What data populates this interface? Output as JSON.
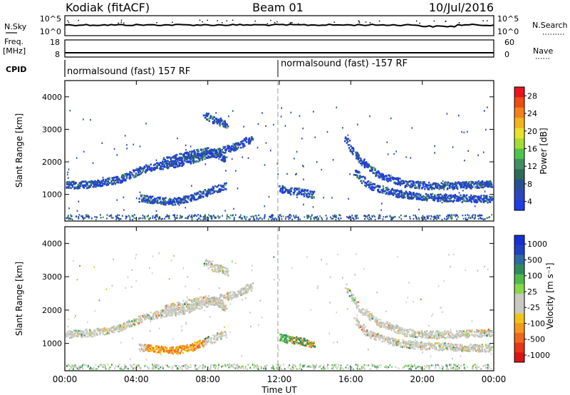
{
  "header": {
    "station": "Kodiak (fitACF)",
    "beam": "Beam 01",
    "date": "10/Jul/2016"
  },
  "panels": {
    "nsky_label": "N.Sky",
    "nsky_ticks": [
      "10^5",
      "10^0"
    ],
    "nsearch_label": "N.Search",
    "nsearch_ticks": [
      "10^5",
      "10^0"
    ],
    "freq_label_1": "Freq.",
    "freq_label_2": "[MHz]",
    "freq_ticks": [
      "18",
      "8"
    ],
    "nave_label": "Nave",
    "nave_ticks": [
      "60",
      "0"
    ],
    "cpid_label": "CPID",
    "cpid_segments": [
      "normalsound (fast) 157 RF",
      "normalsound (fast) -157 RF"
    ]
  },
  "axes": {
    "ylabel": "Slant Range [km]",
    "yticks": [
      "4000",
      "3000",
      "2000",
      "1000"
    ],
    "xlabel": "Time UT",
    "xticks": [
      "00:00",
      "04:00",
      "08:00",
      "12:00",
      "16:00",
      "20:00",
      "00:00"
    ]
  },
  "colorbars": {
    "power": {
      "label": "Power [dB]",
      "ticks": [
        "28",
        "24",
        "20",
        "16",
        "12",
        "8",
        "4"
      ],
      "colors": [
        "#e8131b",
        "#ee4a12",
        "#f4801c",
        "#f2b31b",
        "#e8e22a",
        "#a6dc33",
        "#4fc44a",
        "#3f8f62",
        "#2d6a5a",
        "#294f93",
        "#2a47bd",
        "#1e3ce8"
      ]
    },
    "velocity": {
      "label": "Velocity [m s⁻¹]",
      "ticks": [
        "1000",
        "500",
        "100",
        "25",
        "-25",
        "-100",
        "-500",
        "-1000"
      ],
      "colors": [
        "#1530d8",
        "#2040c2",
        "#2d6aa0",
        "#2f8a5a",
        "#4fb949",
        "#88d64a",
        "#c9c9c2",
        "#c9c9c2",
        "#f0c419",
        "#f4991c",
        "#f0661a",
        "#e83418",
        "#d91414"
      ]
    }
  },
  "chart_data": [
    {
      "type": "scatter",
      "panel": "power",
      "xlabel": "Time UT",
      "ylabel": "Slant Range [km]",
      "x_range_hours": [
        0,
        24
      ],
      "ylim": [
        180,
        4500
      ],
      "colorbar_range_db": [
        0,
        32
      ],
      "series": [
        {
          "x": [
            0.0,
            1.5,
            3.0,
            4.5,
            5.3,
            6.5,
            8.0,
            9.5,
            10.5
          ],
          "y": [
            1300,
            1330,
            1480,
            1820,
            1900,
            2000,
            2250,
            2500,
            2750
          ]
        },
        {
          "x": [
            5.5,
            6.3,
            7.0,
            8.0,
            8.7,
            9.0
          ],
          "y": [
            2050,
            2150,
            2250,
            2350,
            2200,
            2050
          ]
        },
        {
          "x": [
            4.2,
            5.0,
            6.0,
            7.0,
            8.0,
            9.0
          ],
          "y": [
            900,
            850,
            800,
            900,
            1100,
            1300
          ]
        },
        {
          "x": [
            7.8,
            8.3,
            8.7,
            9.1
          ],
          "y": [
            3450,
            3300,
            3250,
            3150
          ]
        },
        {
          "x": [
            12.0,
            12.4,
            13.0,
            14.0
          ],
          "y": [
            1200,
            1150,
            1100,
            1000
          ]
        },
        {
          "x": [
            15.7,
            16.5,
            17.5,
            19.0,
            20.5,
            22.0,
            24.0
          ],
          "y": [
            2700,
            2050,
            1650,
            1350,
            1280,
            1300,
            1350
          ]
        },
        {
          "x": [
            16.2,
            17.0,
            18.5,
            20.0,
            22.0,
            24.0
          ],
          "y": [
            1700,
            1300,
            1050,
            950,
            900,
            880
          ]
        }
      ]
    },
    {
      "type": "scatter",
      "panel": "velocity",
      "xlabel": "Time UT",
      "ylabel": "Slant Range [km]",
      "x_range_hours": [
        0,
        24
      ],
      "ylim": [
        180,
        4500
      ],
      "colorbar_range_ms": [
        -1000,
        1000
      ],
      "series": [
        {
          "x": [
            0.0,
            1.5,
            3.0,
            4.5,
            5.3,
            6.5,
            8.0,
            9.5,
            10.5
          ],
          "y": [
            1300,
            1330,
            1480,
            1820,
            1900,
            2000,
            2250,
            2500,
            2750
          ]
        },
        {
          "x": [
            5.5,
            6.3,
            7.0,
            8.0,
            8.7,
            9.0
          ],
          "y": [
            2050,
            2150,
            2250,
            2350,
            2200,
            2050
          ]
        },
        {
          "x": [
            4.2,
            5.0,
            6.0,
            7.0,
            8.0,
            9.0
          ],
          "y": [
            900,
            850,
            800,
            900,
            1100,
            1300
          ]
        },
        {
          "x": [
            7.8,
            8.3,
            8.7,
            9.1
          ],
          "y": [
            3450,
            3300,
            3250,
            3150
          ]
        },
        {
          "x": [
            12.0,
            12.4,
            13.0,
            14.0
          ],
          "y": [
            1200,
            1150,
            1100,
            1000
          ]
        },
        {
          "x": [
            15.7,
            16.5,
            17.5,
            19.0,
            20.5,
            22.0,
            24.0
          ],
          "y": [
            2700,
            2050,
            1650,
            1350,
            1280,
            1300,
            1350
          ]
        },
        {
          "x": [
            16.2,
            17.0,
            18.5,
            20.0,
            22.0,
            24.0
          ],
          "y": [
            1700,
            1300,
            1050,
            950,
            900,
            880
          ]
        }
      ]
    }
  ]
}
